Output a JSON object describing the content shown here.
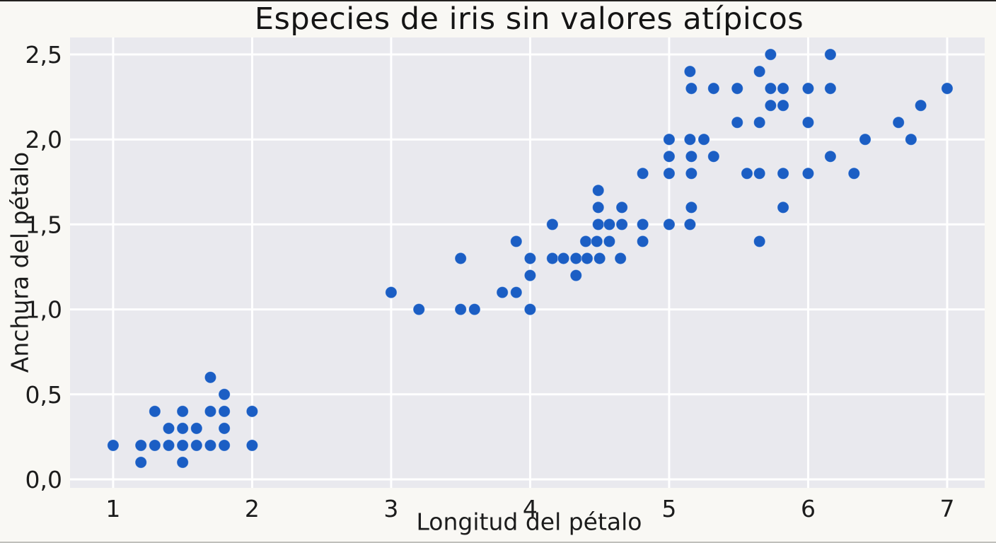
{
  "figure": {
    "background": "#f9f8f4",
    "plot_background": "#e9e9ee",
    "grid_color": "#ffffff",
    "text_color": "#1c1c1c",
    "accent_point_color": "#1b5ec4"
  },
  "chart_data": {
    "type": "scatter",
    "title": "Especies de iris sin valores atípicos",
    "xlabel": "Longitud del pétalo",
    "ylabel": "Anchura del pétalo",
    "xlim": [
      0.69,
      7.27
    ],
    "ylim": [
      -0.05,
      2.6
    ],
    "xticks": [
      1,
      2,
      3,
      4,
      5,
      6,
      7
    ],
    "xtick_labels": [
      "1",
      "2",
      "3",
      "4",
      "5",
      "6",
      "7"
    ],
    "yticks": [
      0.0,
      0.5,
      1.0,
      1.5,
      2.0,
      2.5
    ],
    "ytick_labels": [
      "0,0",
      "0,5",
      "1,0",
      "1,5",
      "2,0",
      "2,5"
    ],
    "grid": true,
    "legend": false,
    "point_color": "#1b5ec4",
    "point_radius": 8.2,
    "points": [
      [
        1.0,
        0.2
      ],
      [
        1.2,
        0.1
      ],
      [
        1.2,
        0.2
      ],
      [
        1.3,
        0.2
      ],
      [
        1.3,
        0.4
      ],
      [
        1.4,
        0.2
      ],
      [
        1.4,
        0.3
      ],
      [
        1.5,
        0.1
      ],
      [
        1.5,
        0.2
      ],
      [
        1.5,
        0.3
      ],
      [
        1.5,
        0.4
      ],
      [
        1.6,
        0.2
      ],
      [
        1.6,
        0.3
      ],
      [
        1.7,
        0.2
      ],
      [
        1.7,
        0.4
      ],
      [
        1.7,
        0.6
      ],
      [
        1.8,
        0.2
      ],
      [
        1.8,
        0.3
      ],
      [
        1.8,
        0.4
      ],
      [
        1.8,
        0.5
      ],
      [
        2.0,
        0.2
      ],
      [
        2.0,
        0.4
      ],
      [
        3.2,
        1.0
      ],
      [
        3.5,
        1.0
      ],
      [
        3.6,
        1.0
      ],
      [
        4.0,
        1.0
      ],
      [
        3.0,
        1.1
      ],
      [
        3.8,
        1.1
      ],
      [
        3.9,
        1.1
      ],
      [
        4.0,
        1.2
      ],
      [
        4.33,
        1.2
      ],
      [
        3.5,
        1.3
      ],
      [
        4.0,
        1.3
      ],
      [
        4.16,
        1.3
      ],
      [
        4.24,
        1.3
      ],
      [
        4.33,
        1.3
      ],
      [
        4.41,
        1.3
      ],
      [
        4.5,
        1.3
      ],
      [
        4.65,
        1.3
      ],
      [
        3.9,
        1.4
      ],
      [
        4.4,
        1.4
      ],
      [
        4.48,
        1.4
      ],
      [
        4.57,
        1.4
      ],
      [
        4.81,
        1.4
      ],
      [
        5.65,
        1.4
      ],
      [
        4.16,
        1.5
      ],
      [
        4.49,
        1.5
      ],
      [
        4.57,
        1.5
      ],
      [
        4.66,
        1.5
      ],
      [
        4.81,
        1.5
      ],
      [
        5.0,
        1.5
      ],
      [
        5.15,
        1.5
      ],
      [
        4.49,
        1.6
      ],
      [
        4.66,
        1.6
      ],
      [
        5.16,
        1.6
      ],
      [
        5.82,
        1.6
      ],
      [
        4.49,
        1.7
      ],
      [
        4.81,
        1.8
      ],
      [
        5.0,
        1.8
      ],
      [
        5.16,
        1.8
      ],
      [
        5.56,
        1.8
      ],
      [
        5.65,
        1.8
      ],
      [
        5.82,
        1.8
      ],
      [
        6.0,
        1.8
      ],
      [
        6.33,
        1.8
      ],
      [
        5.0,
        1.9
      ],
      [
        5.16,
        1.9
      ],
      [
        5.32,
        1.9
      ],
      [
        6.16,
        1.9
      ],
      [
        5.0,
        2.0
      ],
      [
        5.15,
        2.0
      ],
      [
        5.25,
        2.0
      ],
      [
        6.41,
        2.0
      ],
      [
        6.74,
        2.0
      ],
      [
        5.49,
        2.1
      ],
      [
        5.65,
        2.1
      ],
      [
        6.0,
        2.1
      ],
      [
        6.65,
        2.1
      ],
      [
        5.73,
        2.2
      ],
      [
        5.82,
        2.2
      ],
      [
        6.81,
        2.2
      ],
      [
        5.16,
        2.3
      ],
      [
        5.32,
        2.3
      ],
      [
        5.49,
        2.3
      ],
      [
        5.73,
        2.3
      ],
      [
        5.82,
        2.3
      ],
      [
        6.0,
        2.3
      ],
      [
        6.16,
        2.3
      ],
      [
        7.0,
        2.3
      ],
      [
        5.15,
        2.4
      ],
      [
        5.65,
        2.4
      ],
      [
        5.73,
        2.5
      ],
      [
        6.16,
        2.5
      ]
    ]
  }
}
